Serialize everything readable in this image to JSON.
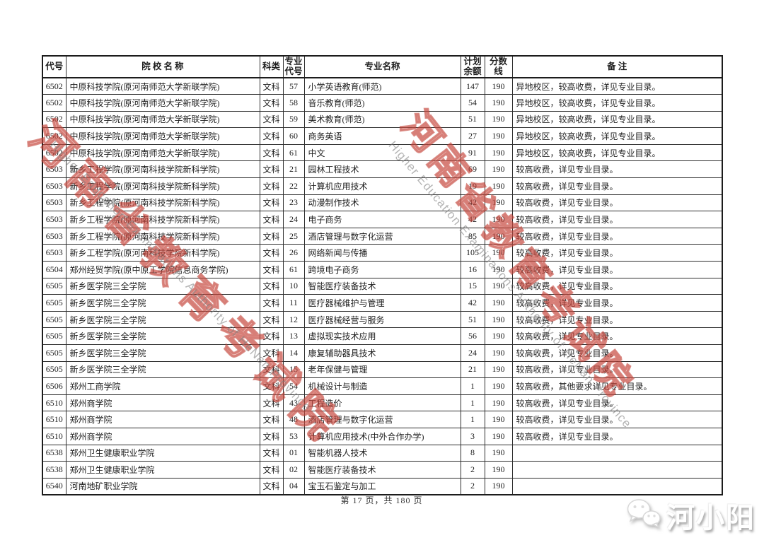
{
  "page": {
    "footer": "第 17 页，共 180 页",
    "brand": "河小阳"
  },
  "watermark": {
    "cn_text": "河南省教育考试院",
    "en_text": "Higher Education Examinations Authority of HeNan Province",
    "red_color": "#c13e34",
    "gray_color": "#7d7d7d"
  },
  "table": {
    "headers": [
      "代号",
      "院  校  名  称",
      "科类",
      "专业代号",
      "专业名称",
      "计划余额",
      "分数线",
      "备  注"
    ],
    "rows": [
      {
        "code": "6502",
        "school": "中原科技学院(原河南师范大学新联学院)",
        "category": "文科",
        "major_code": "57",
        "major": "小学英语教育(师范)",
        "quota": "147",
        "score": "190",
        "remark": "异地校区，较高收费，详见专业目录。"
      },
      {
        "code": "6502",
        "school": "中原科技学院(原河南师范大学新联学院)",
        "category": "文科",
        "major_code": "58",
        "major": "音乐教育(师范)",
        "quota": "54",
        "score": "190",
        "remark": "异地校区，较高收费，详见专业目录。"
      },
      {
        "code": "6502",
        "school": "中原科技学院(原河南师范大学新联学院)",
        "category": "文科",
        "major_code": "59",
        "major": "美术教育(师范)",
        "quota": "51",
        "score": "190",
        "remark": "异地校区，较高收费，详见专业目录。"
      },
      {
        "code": "6502",
        "school": "中原科技学院(原河南师范大学新联学院)",
        "category": "文科",
        "major_code": "60",
        "major": "商务英语",
        "quota": "27",
        "score": "190",
        "remark": "异地校区，较高收费，详见专业目录。"
      },
      {
        "code": "6502",
        "school": "中原科技学院(原河南师范大学新联学院)",
        "category": "文科",
        "major_code": "61",
        "major": "中文",
        "quota": "91",
        "score": "190",
        "remark": "异地校区，较高收费，详见专业目录。"
      },
      {
        "code": "6503",
        "school": "新乡工程学院(原河南科技学院新科学院)",
        "category": "文科",
        "major_code": "21",
        "major": "园林工程技术",
        "quota": "69",
        "score": "190",
        "remark": "较高收费，详见专业目录。"
      },
      {
        "code": "6503",
        "school": "新乡工程学院(原河南科技学院新科学院)",
        "category": "文科",
        "major_code": "22",
        "major": "计算机应用技术",
        "quota": "19",
        "score": "190",
        "remark": "较高收费，详见专业目录。"
      },
      {
        "code": "6503",
        "school": "新乡工程学院(原河南科技学院新科学院)",
        "category": "文科",
        "major_code": "23",
        "major": "动漫制作技术",
        "quota": "42",
        "score": "190",
        "remark": "较高收费，详见专业目录。"
      },
      {
        "code": "6503",
        "school": "新乡工程学院(原河南科技学院新科学院)",
        "category": "文科",
        "major_code": "24",
        "major": "电子商务",
        "quota": "42",
        "score": "190",
        "remark": "较高收费，详见专业目录。"
      },
      {
        "code": "6503",
        "school": "新乡工程学院(原河南科技学院新科学院)",
        "category": "文科",
        "major_code": "25",
        "major": "酒店管理与数字化运营",
        "quota": "85",
        "score": "190",
        "remark": "较高收费，详见专业目录。"
      },
      {
        "code": "6503",
        "school": "新乡工程学院(原河南科技学院新科学院)",
        "category": "文科",
        "major_code": "26",
        "major": "网络新闻与传播",
        "quota": "105",
        "score": "190",
        "remark": "较高收费，详见专业目录。"
      },
      {
        "code": "6504",
        "school": "郑州经贸学院(原中原工学院信息商务学院)",
        "category": "文科",
        "major_code": "61",
        "major": "跨境电子商务",
        "quota": "16",
        "score": "190",
        "remark": "较高收费，详见专业目录。"
      },
      {
        "code": "6505",
        "school": "新乡医学院三全学院",
        "category": "文科",
        "major_code": "10",
        "major": "智能医疗装备技术",
        "quota": "15",
        "score": "190",
        "remark": "较高收费，详见专业目录。"
      },
      {
        "code": "6505",
        "school": "新乡医学院三全学院",
        "category": "文科",
        "major_code": "11",
        "major": "医疗器械维护与管理",
        "quota": "42",
        "score": "190",
        "remark": "较高收费，详见专业目录。"
      },
      {
        "code": "6505",
        "school": "新乡医学院三全学院",
        "category": "文科",
        "major_code": "12",
        "major": "医疗器械经营与服务",
        "quota": "51",
        "score": "190",
        "remark": "较高收费，详见专业目录。"
      },
      {
        "code": "6505",
        "school": "新乡医学院三全学院",
        "category": "文科",
        "major_code": "13",
        "major": "虚拟现实技术应用",
        "quota": "56",
        "score": "190",
        "remark": "较高收费，详见专业目录。"
      },
      {
        "code": "6505",
        "school": "新乡医学院三全学院",
        "category": "文科",
        "major_code": "14",
        "major": "康复辅助器具技术",
        "quota": "24",
        "score": "190",
        "remark": "较高收费，详见专业目录。"
      },
      {
        "code": "6505",
        "school": "新乡医学院三全学院",
        "category": "文科",
        "major_code": "15",
        "major": "老年保健与管理",
        "quota": "21",
        "score": "190",
        "remark": "较高收费，详见专业目录。"
      },
      {
        "code": "6506",
        "school": "郑州工商学院",
        "category": "文科",
        "major_code": "54",
        "major": "机械设计与制造",
        "quota": "1",
        "score": "190",
        "remark": "较高收费，其他要求详见专业目录。"
      },
      {
        "code": "6510",
        "school": "郑州商学院",
        "category": "文科",
        "major_code": "43",
        "major": "工程造价",
        "quota": "1",
        "score": "190",
        "remark": "较高收费，详见专业目录。"
      },
      {
        "code": "6510",
        "school": "郑州商学院",
        "category": "文科",
        "major_code": "48",
        "major": "酒店管理与数字化运营",
        "quota": "1",
        "score": "190",
        "remark": "较高收费，详见专业目录。"
      },
      {
        "code": "6510",
        "school": "郑州商学院",
        "category": "文科",
        "major_code": "53",
        "major": "计算机应用技术(中外合作办学)",
        "quota": "3",
        "score": "190",
        "remark": "较高收费，详见专业目录。"
      },
      {
        "code": "6538",
        "school": "郑州卫生健康职业学院",
        "category": "文科",
        "major_code": "01",
        "major": "智能机器人技术",
        "quota": "8",
        "score": "190",
        "remark": ""
      },
      {
        "code": "6538",
        "school": "郑州卫生健康职业学院",
        "category": "文科",
        "major_code": "02",
        "major": "智能医疗装备技术",
        "quota": "2",
        "score": "190",
        "remark": ""
      },
      {
        "code": "6540",
        "school": "河南地矿职业学院",
        "category": "文科",
        "major_code": "04",
        "major": "宝玉石鉴定与加工",
        "quota": "2",
        "score": "190",
        "remark": ""
      }
    ]
  }
}
